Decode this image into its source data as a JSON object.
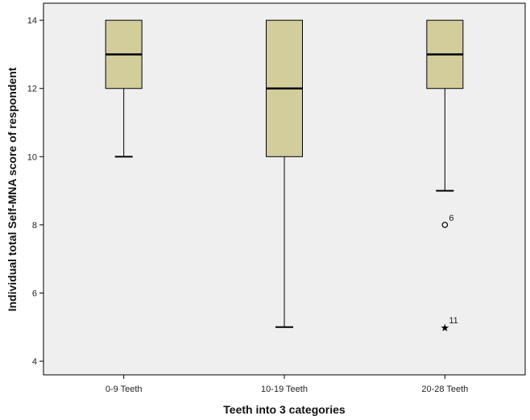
{
  "chart_data": {
    "type": "boxplot",
    "xlabel": "Teeth into 3 categories",
    "ylabel": "Individual total Self-MNA score of respondent",
    "ylim": [
      3.6,
      14.5
    ],
    "yticks": [
      4,
      6,
      8,
      10,
      12,
      14
    ],
    "grid": false,
    "colors": {
      "box_fill": "#d3cd9c",
      "plot_bg": "#efefef",
      "stroke": "#000000"
    },
    "categories": [
      "0-9 Teeth",
      "10-19 Teeth",
      "20-28 Teeth"
    ],
    "boxes": [
      {
        "category": "0-9 Teeth",
        "min": 10,
        "q1": 12,
        "median": 13,
        "q3": 14,
        "max": 14,
        "outliers": []
      },
      {
        "category": "10-19 Teeth",
        "min": 5,
        "q1": 10,
        "median": 12,
        "q3": 14,
        "max": 14,
        "outliers": []
      },
      {
        "category": "20-28 Teeth",
        "min": 9,
        "q1": 12,
        "median": 13,
        "q3": 14,
        "max": 14,
        "outliers": [
          {
            "value": 8,
            "label": "6",
            "marker": "circle"
          },
          {
            "value": 5,
            "label": "11",
            "marker": "star"
          }
        ]
      }
    ]
  }
}
